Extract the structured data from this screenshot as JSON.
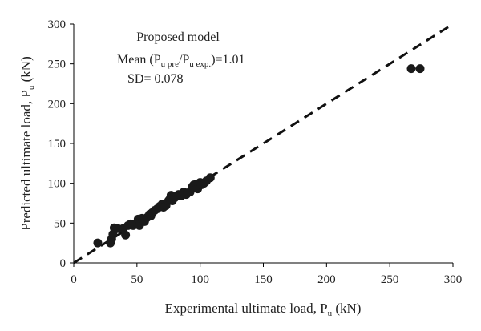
{
  "chart_data": {
    "type": "scatter",
    "xlabel_main": "Experimental ultimate load, P",
    "xlabel_sub": "u",
    "xlabel_unit": " (kN)",
    "ylabel_main": "Predicted ultimate load, P",
    "ylabel_sub": "u",
    "ylabel_unit": " (kN)",
    "xlim": [
      0,
      300
    ],
    "ylim": [
      0,
      300
    ],
    "xticks": [
      0,
      50,
      100,
      150,
      200,
      250,
      300
    ],
    "yticks": [
      0,
      50,
      100,
      150,
      200,
      250,
      300
    ],
    "xtick_labels": [
      "0",
      "50",
      "100",
      "150",
      "200",
      "250",
      "300"
    ],
    "ytick_labels": [
      "0",
      "50",
      "100",
      "150",
      "200",
      "250",
      "300"
    ],
    "grid": false,
    "reference_line": {
      "style": "dashed",
      "color": "#111111",
      "from": [
        0,
        0
      ],
      "to": [
        300,
        300
      ]
    },
    "annotations": {
      "line1": "Proposed model",
      "line2_prefix": "Mean (P",
      "line2_sub1": "u pre",
      "line2_mid": "/P",
      "line2_sub2": "u exp.",
      "line2_suffix": ")=1.01",
      "line3": "SD= 0.078"
    },
    "marker_color": "#1a1a1a",
    "series": [
      {
        "points": [
          [
            19,
            25
          ],
          [
            29,
            25
          ],
          [
            30,
            30
          ],
          [
            31,
            36
          ],
          [
            32,
            44
          ],
          [
            35,
            43
          ],
          [
            39,
            43
          ],
          [
            41,
            35
          ],
          [
            43,
            47
          ],
          [
            45,
            49
          ],
          [
            47,
            47
          ],
          [
            50,
            50
          ],
          [
            51,
            55
          ],
          [
            52,
            47
          ],
          [
            53,
            53
          ],
          [
            54,
            56
          ],
          [
            56,
            52
          ],
          [
            58,
            57
          ],
          [
            60,
            61
          ],
          [
            61,
            59
          ],
          [
            62,
            63
          ],
          [
            64,
            66
          ],
          [
            66,
            68
          ],
          [
            68,
            71
          ],
          [
            70,
            74
          ],
          [
            71,
            70
          ],
          [
            73,
            72
          ],
          [
            75,
            78
          ],
          [
            76,
            80
          ],
          [
            77,
            85
          ],
          [
            78,
            78
          ],
          [
            79,
            83
          ],
          [
            80,
            82
          ],
          [
            83,
            86
          ],
          [
            85,
            84
          ],
          [
            87,
            89
          ],
          [
            89,
            86
          ],
          [
            90,
            88
          ],
          [
            92,
            89
          ],
          [
            94,
            96
          ],
          [
            95,
            98
          ],
          [
            97,
            99
          ],
          [
            98,
            93
          ],
          [
            100,
            101
          ],
          [
            101,
            98
          ],
          [
            103,
            100
          ],
          [
            105,
            103
          ],
          [
            108,
            107
          ],
          [
            267,
            244
          ],
          [
            274,
            244
          ]
        ]
      }
    ]
  }
}
